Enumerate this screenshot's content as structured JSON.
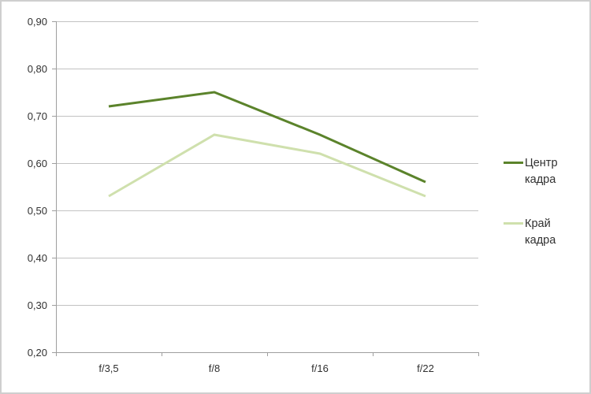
{
  "chart_data": {
    "type": "line",
    "title": "",
    "categories": [
      "f/3,5",
      "f/8",
      "f/16",
      "f/22"
    ],
    "series": [
      {
        "name": "Центр кадра",
        "values": [
          0.72,
          0.75,
          0.66,
          0.56
        ],
        "color": "#5b832b"
      },
      {
        "name": "Край кадра",
        "values": [
          0.53,
          0.66,
          0.62,
          0.53
        ],
        "color": "#cfe0ad"
      }
    ],
    "ylim": [
      0.2,
      0.9
    ],
    "ytick_step": 0.1,
    "ytick_labels_top_to_bottom": [
      "0,90",
      "0,80",
      "0,70",
      "0,60",
      "0,50",
      "0,40",
      "0,30",
      "0,20"
    ],
    "xlabel": "",
    "ylabel": "",
    "grid": true,
    "legend_position": "right",
    "decimal_separator": ","
  },
  "colors": {
    "background": "#ffffff",
    "frame_border": "#cfcfcf",
    "gridline": "#c2c2c2",
    "axis": "#9e9e9e",
    "text": "#303030"
  }
}
